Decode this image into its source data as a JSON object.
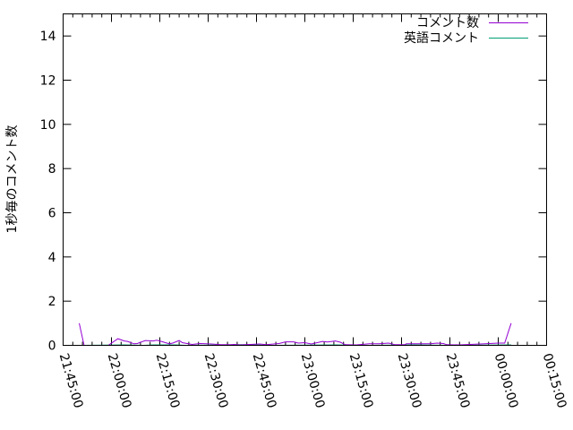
{
  "chart_data": {
    "type": "line",
    "title": "",
    "xlabel": "",
    "ylabel": "1秒毎のコメント数",
    "xlim": [
      "21:45:00",
      "00:15:00"
    ],
    "ylim": [
      0,
      15
    ],
    "x_ticks": [
      "21:45:00",
      "22:00:00",
      "22:15:00",
      "22:30:00",
      "22:45:00",
      "23:00:00",
      "23:15:00",
      "23:30:00",
      "23:45:00",
      "00:00:00",
      "00:15:00"
    ],
    "y_ticks": [
      "0",
      "2",
      "4",
      "6",
      "8",
      "10",
      "12",
      "14"
    ],
    "y_tick_values": [
      0,
      2,
      4,
      6,
      8,
      10,
      12,
      14
    ],
    "grid": false,
    "legend_position": "top-right",
    "series": [
      {
        "name": "コメント数",
        "color": "#9400d3",
        "points": [
          [
            "21:50:00",
            1
          ],
          [
            "21:51:30",
            0
          ],
          [
            "21:59:00",
            0
          ],
          [
            "22:02:00",
            0.3
          ],
          [
            "22:04:00",
            0.2
          ],
          [
            "22:05:00",
            0.18
          ],
          [
            "22:07:00",
            0.07
          ],
          [
            "22:08:00",
            0.08
          ],
          [
            "22:10:30",
            0.22
          ],
          [
            "22:13:00",
            0.2
          ],
          [
            "22:14:00",
            0.23
          ],
          [
            "22:15:00",
            0.2
          ],
          [
            "22:18:00",
            0.07
          ],
          [
            "22:19:00",
            0.1
          ],
          [
            "22:21:00",
            0.22
          ],
          [
            "22:22:00",
            0.12
          ],
          [
            "22:23:30",
            0.08
          ],
          [
            "22:25:00",
            0.04
          ],
          [
            "22:27:30",
            0.08
          ],
          [
            "22:31:00",
            0.06
          ],
          [
            "22:34:00",
            0.03
          ],
          [
            "22:37:00",
            0.03
          ],
          [
            "22:38:00",
            0.04
          ],
          [
            "22:40:00",
            0.02
          ],
          [
            "22:46:00",
            0.06
          ],
          [
            "22:48:00",
            0.03
          ],
          [
            "22:52:00",
            0.08
          ],
          [
            "22:54:00",
            0.16
          ],
          [
            "22:56:30",
            0.16
          ],
          [
            "22:58:00",
            0.1
          ],
          [
            "23:00:00",
            0.12
          ],
          [
            "23:02:00",
            0.06
          ],
          [
            "23:05:30",
            0.18
          ],
          [
            "23:07:00",
            0.15
          ],
          [
            "23:09:30",
            0.2
          ],
          [
            "23:11:00",
            0.14
          ],
          [
            "23:12:30",
            0.03
          ],
          [
            "23:16:00",
            0.02
          ],
          [
            "23:20:00",
            0.07
          ],
          [
            "23:23:00",
            0.07
          ],
          [
            "23:26:00",
            0.1
          ],
          [
            "23:28:00",
            0.03
          ],
          [
            "23:31:00",
            0.03
          ],
          [
            "23:31:30",
            0.07
          ],
          [
            "23:39:00",
            0.07
          ],
          [
            "23:41:00",
            0.1
          ],
          [
            "23:43:00",
            0.08
          ],
          [
            "23:44:00",
            0.03
          ],
          [
            "23:48:00",
            0.02
          ],
          [
            "23:56:00",
            0.07
          ],
          [
            "00:00:00",
            0.1
          ],
          [
            "00:02:00",
            0.1
          ],
          [
            "00:04:00",
            1
          ]
        ]
      },
      {
        "name": "英語コメント",
        "color": "#009e73",
        "points": [
          [
            "21:51:30",
            0
          ],
          [
            "22:04:00",
            0.02
          ],
          [
            "22:10:00",
            0
          ],
          [
            "22:13:00",
            0.02
          ],
          [
            "22:20:00",
            0.02
          ],
          [
            "22:23:00",
            0
          ],
          [
            "22:40:00",
            0.03
          ],
          [
            "22:50:00",
            0
          ],
          [
            "23:10:00",
            0.02
          ],
          [
            "23:20:00",
            0
          ],
          [
            "23:34:00",
            0.02
          ],
          [
            "23:45:00",
            0
          ],
          [
            "00:04:00",
            0.02
          ]
        ]
      }
    ]
  }
}
